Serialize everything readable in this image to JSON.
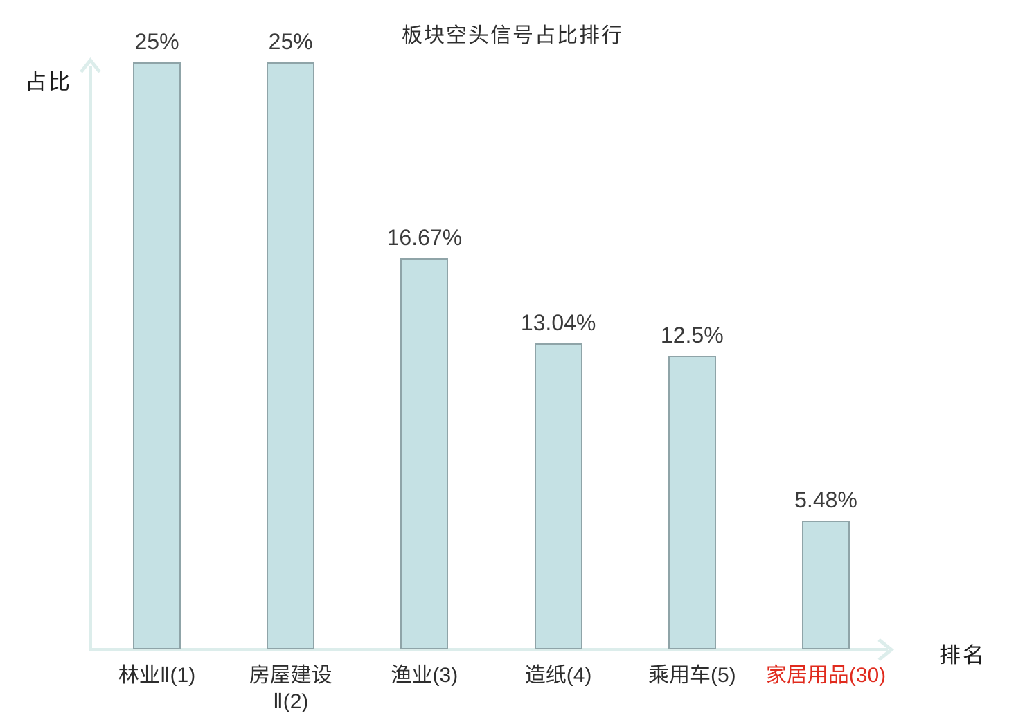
{
  "chart_data": {
    "type": "bar",
    "title": "板块空头信号占比排行",
    "xlabel": "排名",
    "ylabel": "占比",
    "categories": [
      "林业Ⅱ(1)",
      "房屋建设\nⅡ(2)",
      "渔业(3)",
      "造纸(4)",
      "乘用车(5)",
      "家居用品(30)"
    ],
    "values": [
      25,
      25,
      16.67,
      13.04,
      12.5,
      5.48
    ],
    "value_labels": [
      "25%",
      "25%",
      "16.67%",
      "13.04%",
      "12.5%",
      "5.48%"
    ],
    "ylim": [
      0,
      25
    ],
    "grid": false,
    "legend_position": "none",
    "category_colors": [
      "#2d2d2d",
      "#2d2d2d",
      "#2d2d2d",
      "#2d2d2d",
      "#2d2d2d",
      "#e02b1e"
    ],
    "colors": {
      "bar_fill": "#c5e1e4",
      "bar_border": "#8fa4a8",
      "axis": "#dcedeb",
      "title_text": "#2e2e2e",
      "value_text": "#3a3a3a",
      "highlight": "#e02b1e"
    }
  }
}
